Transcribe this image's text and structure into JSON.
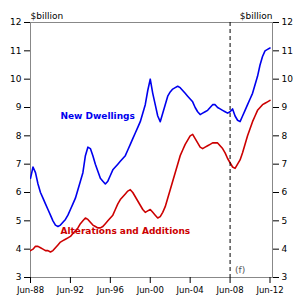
{
  "chart_data": {
    "type": "line",
    "ylabel": "$billion",
    "y2label": "$billion",
    "xlim": [
      1988.5,
      2012.75
    ],
    "xticks": [
      {
        "value": 1988.5,
        "label": "Jun-88"
      },
      {
        "value": 1992.5,
        "label": "Jun-92"
      },
      {
        "value": 1996.5,
        "label": "Jun-96"
      },
      {
        "value": 2000.5,
        "label": "Jun-00"
      },
      {
        "value": 2004.5,
        "label": "Jun-04"
      },
      {
        "value": 2008.5,
        "label": "Jun-08"
      },
      {
        "value": 2012.5,
        "label": "Jun-12"
      }
    ],
    "ylim": [
      3,
      12
    ],
    "yticks": [
      3,
      4,
      5,
      6,
      7,
      8,
      9,
      10,
      11,
      12
    ],
    "y2lim": [
      3,
      12
    ],
    "y2ticks": [
      3,
      4,
      5,
      6,
      7,
      8,
      9,
      10,
      11,
      12
    ],
    "grid": false,
    "x": [
      1988.5,
      1988.75,
      1989.0,
      1989.25,
      1989.5,
      1989.75,
      1990.0,
      1990.25,
      1990.5,
      1990.75,
      1991.0,
      1991.25,
      1991.5,
      1991.75,
      1992.0,
      1992.25,
      1992.5,
      1992.75,
      1993.0,
      1993.25,
      1993.5,
      1993.75,
      1994.0,
      1994.25,
      1994.5,
      1994.75,
      1995.0,
      1995.25,
      1995.5,
      1995.75,
      1996.0,
      1996.25,
      1996.5,
      1996.75,
      1997.0,
      1997.25,
      1997.5,
      1997.75,
      1998.0,
      1998.25,
      1998.5,
      1998.75,
      1999.0,
      1999.25,
      1999.5,
      1999.75,
      2000.0,
      2000.25,
      2000.5,
      2000.75,
      2001.0,
      2001.25,
      2001.5,
      2001.75,
      2002.0,
      2002.25,
      2002.5,
      2002.75,
      2003.0,
      2003.25,
      2003.5,
      2003.75,
      2004.0,
      2004.25,
      2004.5,
      2004.75,
      2005.0,
      2005.25,
      2005.5,
      2005.75,
      2006.0,
      2006.25,
      2006.5,
      2006.75,
      2007.0,
      2007.25,
      2007.5,
      2007.75,
      2008.0,
      2008.25,
      2008.5,
      2008.75,
      2009.0,
      2009.25,
      2009.5,
      2009.75,
      2010.0,
      2010.25,
      2010.5,
      2010.75,
      2011.0,
      2011.25,
      2011.5,
      2011.75,
      2012.0,
      2012.25,
      2012.5
    ],
    "series": [
      {
        "color": "#0000ee",
        "values": [
          6.5,
          6.9,
          6.7,
          6.3,
          6.0,
          5.8,
          5.6,
          5.4,
          5.2,
          5.0,
          4.85,
          4.8,
          4.85,
          4.95,
          5.05,
          5.2,
          5.4,
          5.6,
          5.8,
          6.1,
          6.4,
          6.7,
          7.3,
          7.6,
          7.55,
          7.3,
          7.0,
          6.75,
          6.5,
          6.4,
          6.3,
          6.4,
          6.6,
          6.8,
          6.9,
          7.0,
          7.1,
          7.2,
          7.3,
          7.5,
          7.7,
          7.9,
          8.1,
          8.3,
          8.5,
          8.8,
          9.1,
          9.6,
          10.0,
          9.5,
          9.1,
          8.7,
          8.5,
          8.8,
          9.1,
          9.4,
          9.55,
          9.65,
          9.7,
          9.75,
          9.7,
          9.6,
          9.5,
          9.4,
          9.3,
          9.2,
          9.0,
          8.85,
          8.75,
          8.8,
          8.85,
          8.9,
          9.0,
          9.1,
          9.1,
          9.0,
          8.95,
          8.9,
          8.85,
          8.8,
          8.85,
          8.95,
          8.7,
          8.55,
          8.5,
          8.7,
          8.9,
          9.1,
          9.3,
          9.5,
          9.8,
          10.1,
          10.5,
          10.8,
          11.0,
          11.05,
          11.1
        ]
      },
      {
        "color": "#cc0000",
        "values": [
          3.95,
          4.0,
          4.1,
          4.1,
          4.05,
          4.0,
          3.95,
          3.95,
          3.9,
          3.95,
          4.05,
          4.15,
          4.25,
          4.3,
          4.35,
          4.4,
          4.45,
          4.55,
          4.65,
          4.75,
          4.9,
          5.0,
          5.1,
          5.05,
          4.95,
          4.85,
          4.8,
          4.75,
          4.75,
          4.8,
          4.9,
          5.0,
          5.1,
          5.2,
          5.4,
          5.6,
          5.75,
          5.85,
          5.95,
          6.05,
          6.1,
          6.0,
          5.85,
          5.7,
          5.55,
          5.4,
          5.3,
          5.35,
          5.4,
          5.3,
          5.2,
          5.1,
          5.15,
          5.3,
          5.5,
          5.8,
          6.1,
          6.4,
          6.7,
          7.0,
          7.3,
          7.5,
          7.7,
          7.85,
          8.0,
          8.05,
          7.9,
          7.75,
          7.6,
          7.55,
          7.6,
          7.65,
          7.7,
          7.75,
          7.75,
          7.75,
          7.65,
          7.55,
          7.4,
          7.2,
          7.05,
          6.9,
          6.85,
          7.0,
          7.15,
          7.4,
          7.7,
          8.0,
          8.25,
          8.5,
          8.7,
          8.9,
          9.0,
          9.1,
          9.15,
          9.2,
          9.25
        ]
      }
    ],
    "vlines": [
      {
        "x": 2008.5,
        "line_style": "dashed"
      }
    ],
    "annotations": [
      {
        "text": "New Dwellings",
        "x": 1991.5,
        "y": 8.6,
        "color": "#0000ee"
      },
      {
        "text": "Alterations and Additions",
        "x": 1991.5,
        "y": 4.55,
        "color": "#cc0000"
      },
      {
        "text": "(f)",
        "x": 2009.0,
        "y": 3.15,
        "color": "#555555"
      }
    ]
  }
}
